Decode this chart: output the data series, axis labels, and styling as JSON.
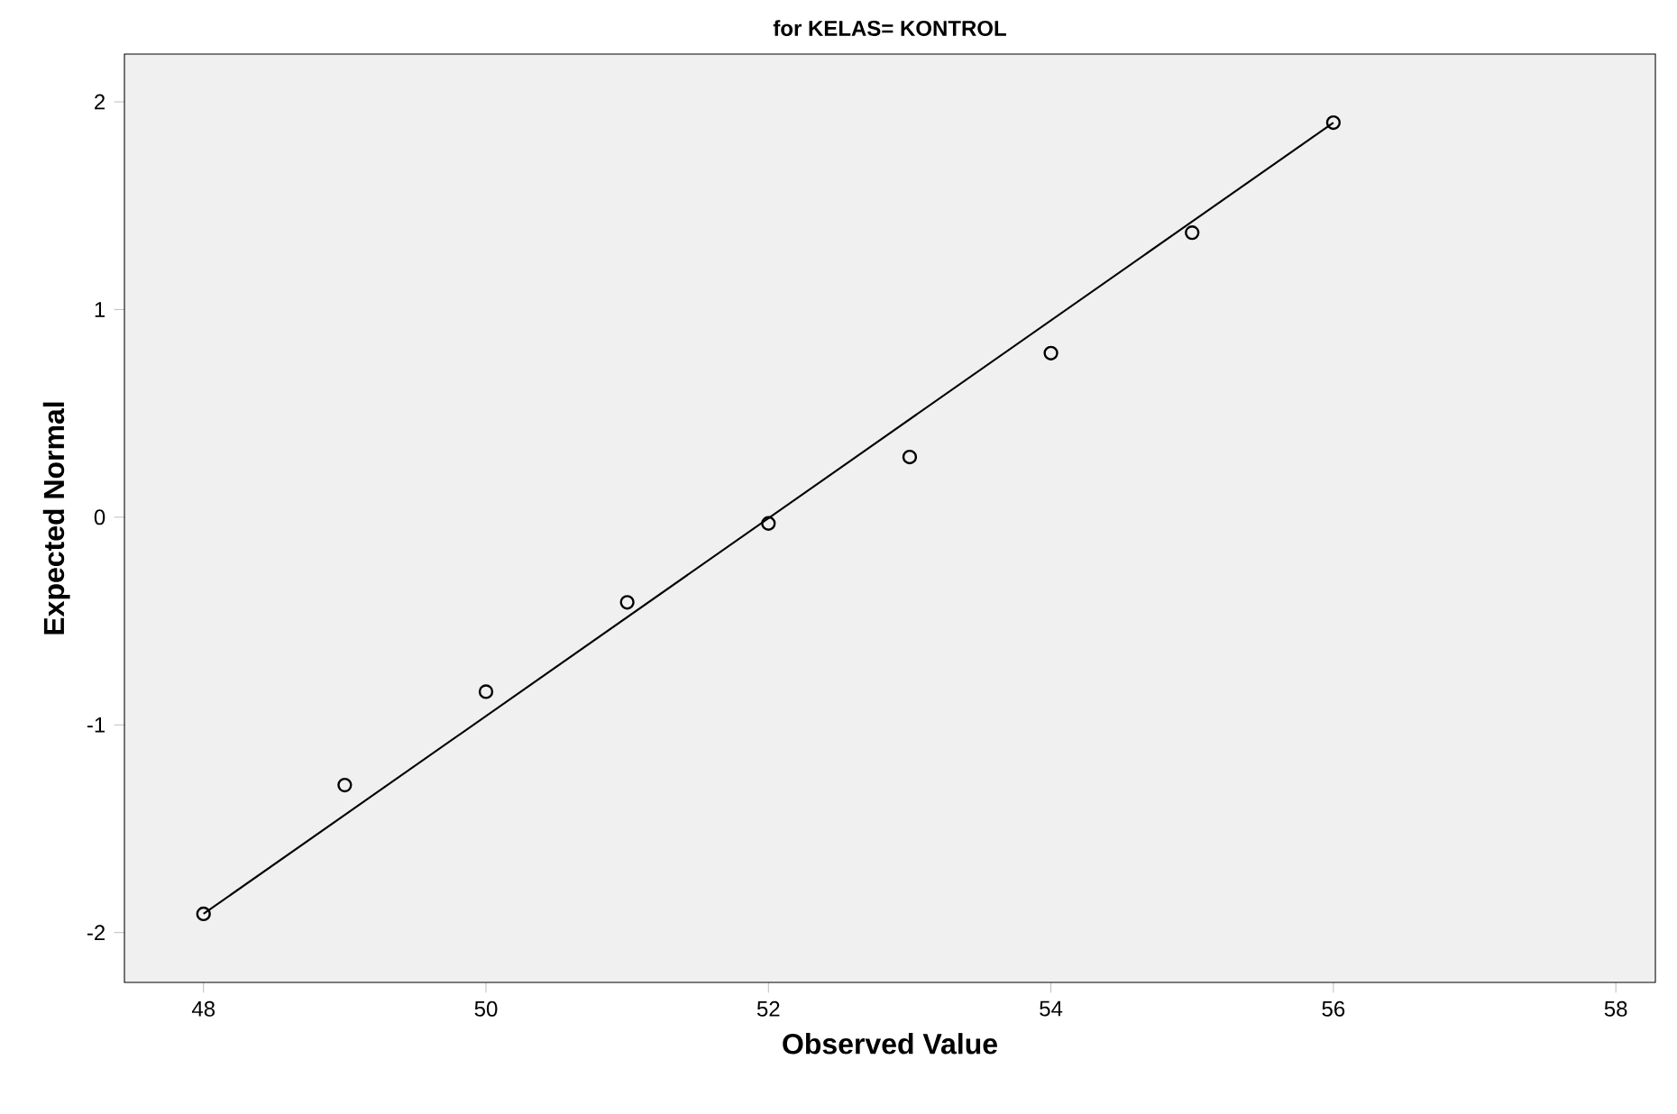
{
  "chart_data": {
    "type": "scatter",
    "title": "for KELAS= KONTROL",
    "xlabel": "Observed Value",
    "ylabel": "Expected Normal",
    "xlim": [
      47.44,
      58.28
    ],
    "xticks": [
      48,
      50,
      52,
      54,
      56,
      58
    ],
    "ylim": [
      -2.24,
      2.23
    ],
    "yticks": [
      -2,
      -1,
      0,
      1,
      2
    ],
    "grid": false,
    "series": [
      {
        "color": "#000000",
        "marker": "circle",
        "x": [
          48,
          49,
          50,
          51,
          52,
          53,
          54,
          55,
          56
        ],
        "values": [
          -1.91,
          -1.29,
          -0.84,
          -0.41,
          -0.03,
          0.29,
          0.79,
          1.37,
          1.9
        ]
      },
      {
        "type": "line",
        "color": "#000000",
        "marker": "none",
        "line_style": "solid",
        "x": [
          48,
          56
        ],
        "values": [
          -1.91,
          1.9
        ]
      }
    ]
  }
}
